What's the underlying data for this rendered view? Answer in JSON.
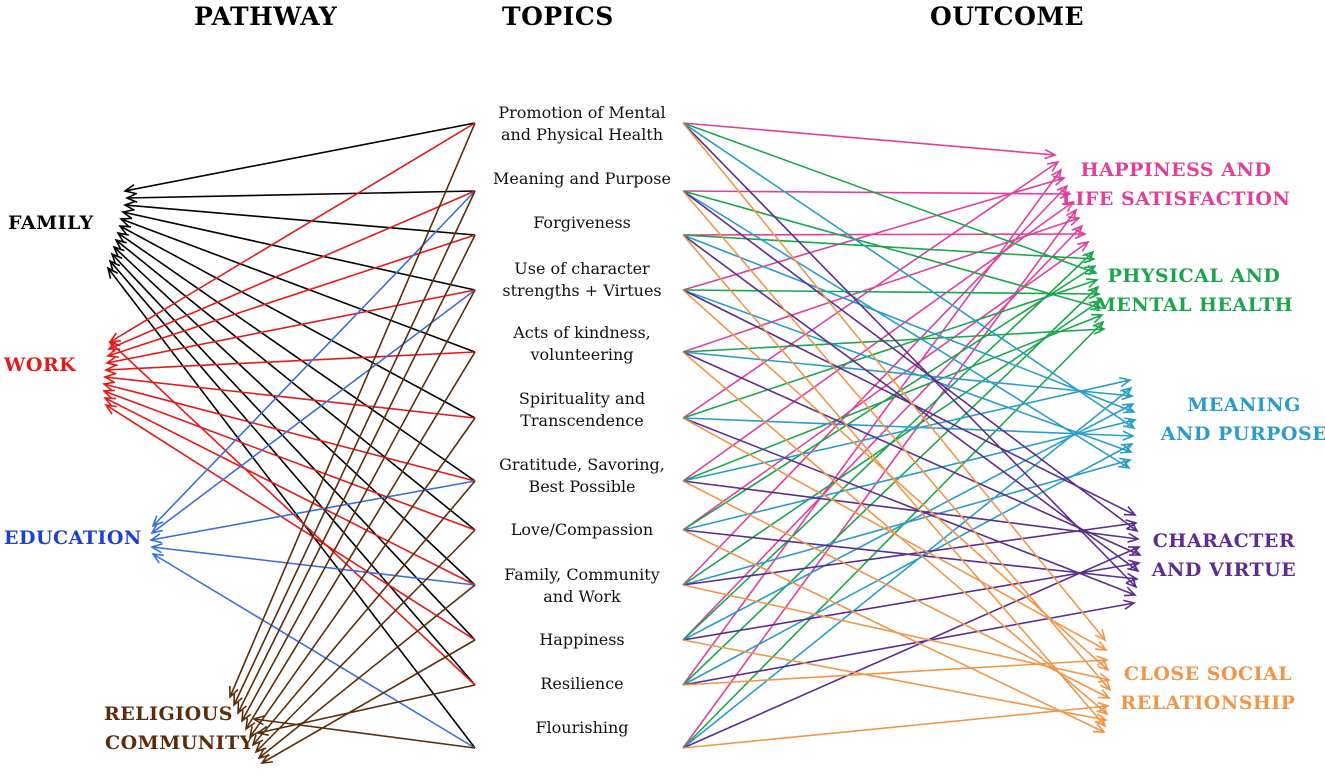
{
  "headers": {
    "pathway": "PATHWAY",
    "topics": "TOPICS",
    "outcome": "OUTCOME"
  },
  "pathways": [
    {
      "label": "FAMILY",
      "color": "#000000"
    },
    {
      "label": "WORK",
      "color": "#e31a1c"
    },
    {
      "label": "EDUCATION",
      "color": "#1f3fd1"
    },
    {
      "label_line1": "RELIGIOUS",
      "label_line2": "COMMUNITY",
      "color": "#5a2d0c"
    }
  ],
  "topics": [
    {
      "line1": "Promotion of Mental",
      "line2": "and Physical Health"
    },
    {
      "line1": "Meaning and Purpose"
    },
    {
      "line1": "Forgiveness"
    },
    {
      "line1": "Use of character",
      "line2": "strengths + Virtues"
    },
    {
      "line1": "Acts of kindness,",
      "line2": "volunteering"
    },
    {
      "line1": "Spirituality and",
      "line2": "Transcendence"
    },
    {
      "line1": "Gratitude, Savoring,",
      "line2": "Best Possible"
    },
    {
      "line1": "Love/Compassion"
    },
    {
      "line1": "Family, Community",
      "line2": "and Work"
    },
    {
      "line1": "Happiness"
    },
    {
      "line1": "Resilience"
    },
    {
      "line1": "Flourishing"
    }
  ],
  "outcomes": [
    {
      "line1": "HAPPINESS AND",
      "line2": "LIFE SATISFACTION",
      "color": "#e0409a"
    },
    {
      "line1": "PHYSICAL AND",
      "line2": "MENTAL HEALTH",
      "color": "#1aa64a"
    },
    {
      "line1": "MEANING",
      "line2": "AND PURPOSE",
      "color": "#2a9cc8"
    },
    {
      "line1": "CHARACTER",
      "line2": "AND VIRTUE",
      "color": "#5b2d91"
    },
    {
      "line1": "CLOSE SOCIAL",
      "line2": "RELATIONSHIP",
      "color": "#f0964a"
    }
  ],
  "arrow_colors": {
    "family": "#000000",
    "work": "#e31a1c",
    "education": "#3a6fd8",
    "religious_community": "#5a2d0c",
    "happiness": "#e0409a",
    "health": "#1aa64a",
    "meaning": "#2a9cc8",
    "character": "#5b2d91",
    "social": "#f0964a"
  }
}
